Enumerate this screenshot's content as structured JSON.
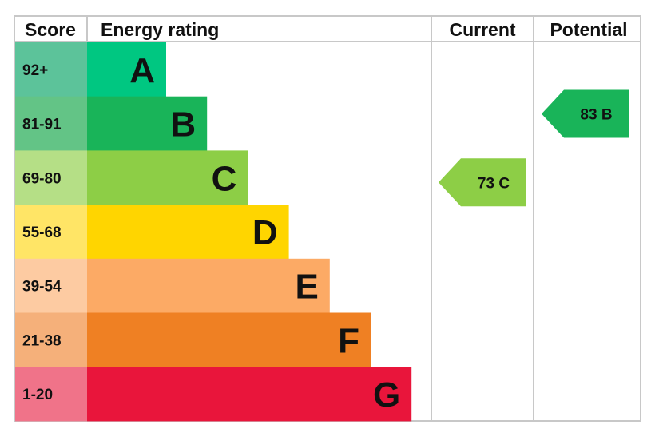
{
  "chart_data": {
    "type": "bar",
    "headers": {
      "score": "Score",
      "rating": "Energy rating",
      "current": "Current",
      "potential": "Potential"
    },
    "bands": [
      {
        "letter": "A",
        "range": "92+",
        "color": "#00c781",
        "score_color": "#5cc39a"
      },
      {
        "letter": "B",
        "range": "81-91",
        "color": "#19b459",
        "score_color": "#63c486"
      },
      {
        "letter": "C",
        "range": "69-80",
        "color": "#8dce46",
        "score_color": "#b5df86"
      },
      {
        "letter": "D",
        "range": "55-68",
        "color": "#ffd500",
        "score_color": "#ffe566"
      },
      {
        "letter": "E",
        "range": "39-54",
        "color": "#fcaa65",
        "score_color": "#fdcba2"
      },
      {
        "letter": "F",
        "range": "21-38",
        "color": "#ef8023",
        "score_color": "#f5b07a"
      },
      {
        "letter": "G",
        "range": "1-20",
        "color": "#e9153b",
        "score_color": "#f07389"
      }
    ],
    "current": {
      "label": "73 C",
      "value": 73,
      "band": "C",
      "color": "#8dce46"
    },
    "potential": {
      "label": "83 B",
      "value": 83,
      "band": "B",
      "color": "#19b459"
    }
  }
}
